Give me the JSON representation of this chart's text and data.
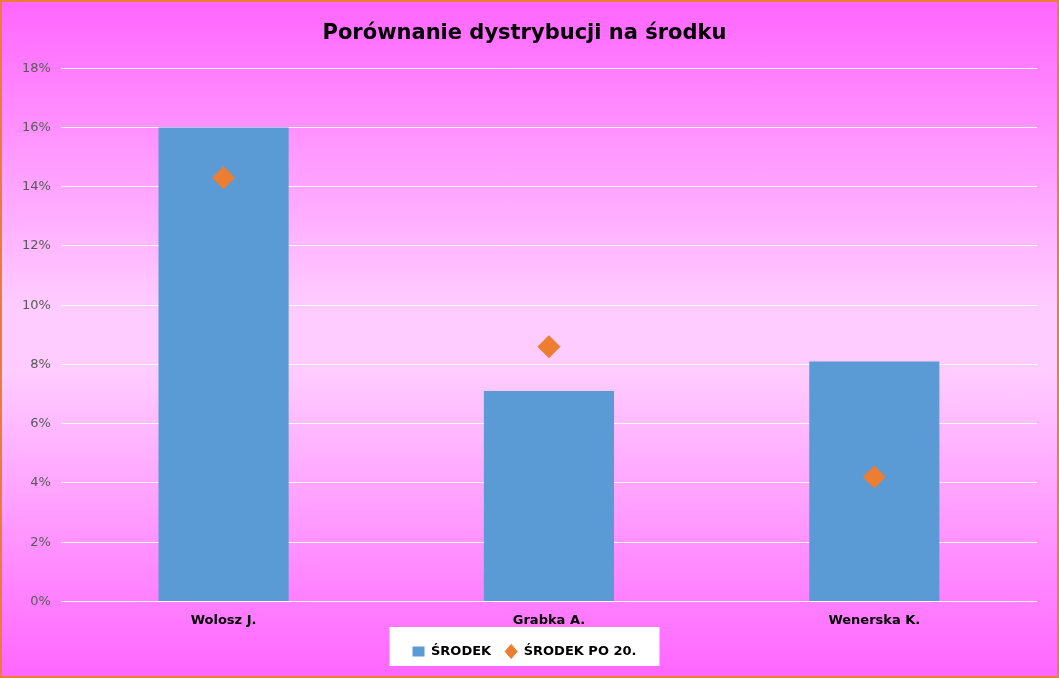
{
  "chart_data": {
    "type": "bar",
    "title": "Porównanie dystrybucji na środku",
    "categories": [
      "Wolosz J.",
      "Grabka A.",
      "Wenerska K."
    ],
    "series": [
      {
        "name": "ŚRODEK",
        "color": "#5b9bd5",
        "values": [
          16.0,
          7.1,
          8.1
        ]
      },
      {
        "name": "ŚRODEK PO 20.",
        "type": "scatter",
        "color": "#ed7d31",
        "values": [
          14.3,
          8.6,
          4.2
        ]
      }
    ],
    "ylim": [
      0,
      18
    ],
    "yticks": [
      {
        "value": 0,
        "label": "0%"
      },
      {
        "value": 2,
        "label": "2%"
      },
      {
        "value": 4,
        "label": "4%"
      },
      {
        "value": 6,
        "label": "6%"
      },
      {
        "value": 8,
        "label": "8%"
      },
      {
        "value": 10,
        "label": "10%"
      },
      {
        "value": 12,
        "label": "12%"
      },
      {
        "value": 14,
        "label": "14%"
      },
      {
        "value": 16,
        "label": "16%"
      },
      {
        "value": 18,
        "label": "18%"
      }
    ],
    "grid": "y",
    "legend": "bottom",
    "marker": "diamond"
  }
}
